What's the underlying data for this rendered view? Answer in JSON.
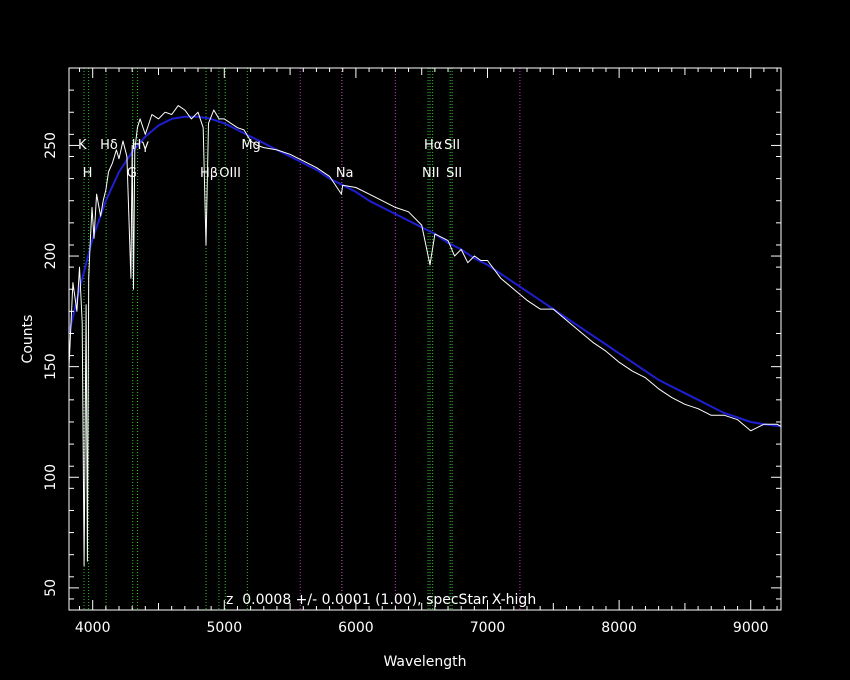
{
  "chart_data": {
    "type": "line",
    "xlabel": "Wavelength",
    "ylabel": "Counts",
    "annotation": "z  0.0008 +/- 0.0001 (1.00), specStar X-high",
    "xlim": [
      3820,
      9230
    ],
    "ylim": [
      40,
      285
    ],
    "x_ticks": [
      4000,
      5000,
      6000,
      7000,
      8000,
      9000
    ],
    "y_ticks": [
      50,
      100,
      150,
      200,
      250
    ],
    "grid": false,
    "colors": {
      "spectrum": "#ffffff",
      "model": "#1e1ed2",
      "line_green": "#30c030",
      "line_magenta": "#c030c0",
      "axes": "#ffffff",
      "background": "#000000"
    },
    "series": [
      {
        "role": "spectrum",
        "x": [
          3820,
          3850,
          3880,
          3900,
          3920,
          3935,
          3950,
          3960,
          3970,
          3980,
          3995,
          4010,
          4030,
          4060,
          4080,
          4100,
          4120,
          4150,
          4180,
          4200,
          4230,
          4260,
          4290,
          4300,
          4310,
          4320,
          4340,
          4360,
          4400,
          4450,
          4500,
          4550,
          4600,
          4650,
          4700,
          4750,
          4800,
          4840,
          4861,
          4880,
          4920,
          4960,
          5000,
          5050,
          5100,
          5150,
          5200,
          5250,
          5300,
          5400,
          5500,
          5600,
          5700,
          5800,
          5890,
          5900,
          6000,
          6100,
          6200,
          6300,
          6400,
          6500,
          6563,
          6600,
          6700,
          6750,
          6800,
          6850,
          6900,
          6950,
          7000,
          7050,
          7100,
          7200,
          7300,
          7400,
          7500,
          7600,
          7700,
          7800,
          7900,
          8000,
          8100,
          8200,
          8300,
          8400,
          8500,
          8600,
          8700,
          8800,
          8900,
          9000,
          9100,
          9200,
          9230
        ],
        "y": [
          150,
          188,
          175,
          195,
          170,
          60,
          178,
          62,
          190,
          205,
          222,
          208,
          228,
          218,
          225,
          230,
          238,
          242,
          248,
          244,
          252,
          245,
          190,
          250,
          185,
          248,
          258,
          262,
          255,
          264,
          262,
          265,
          264,
          268,
          266,
          262,
          265,
          258,
          205,
          260,
          266,
          262,
          262,
          260,
          258,
          257,
          252,
          250,
          249,
          248,
          246,
          243,
          240,
          236,
          228,
          232,
          231,
          228,
          225,
          222,
          220,
          214,
          196,
          210,
          207,
          200,
          203,
          197,
          200,
          198,
          198,
          194,
          190,
          185,
          180,
          176,
          176,
          171,
          166,
          161,
          157,
          152,
          148,
          145,
          140,
          136,
          133,
          131,
          128,
          128,
          126,
          121,
          124,
          124,
          123
        ]
      },
      {
        "role": "model",
        "x": [
          3820,
          3900,
          4000,
          4100,
          4200,
          4300,
          4400,
          4500,
          4600,
          4700,
          4800,
          4900,
          5000,
          5100,
          5200,
          5300,
          5400,
          5500,
          5600,
          5700,
          5800,
          5900,
          6000,
          6100,
          6200,
          6300,
          6400,
          6500,
          6600,
          6700,
          6800,
          6900,
          7000,
          7100,
          7200,
          7300,
          7400,
          7500,
          7600,
          7700,
          7800,
          7900,
          8000,
          8100,
          8200,
          8300,
          8400,
          8500,
          8600,
          8700,
          8800,
          8900,
          9000,
          9100,
          9230
        ],
        "y": [
          165,
          185,
          208,
          225,
          238,
          247,
          254,
          259,
          262,
          263,
          263,
          262,
          260,
          257,
          254,
          251,
          248,
          245,
          242,
          239,
          235,
          232,
          229,
          225,
          222,
          219,
          216,
          213,
          210,
          206,
          203,
          199,
          196,
          192,
          188,
          184,
          180,
          176,
          172,
          168,
          164,
          160,
          156,
          152,
          148,
          144,
          141,
          138,
          135,
          132,
          129,
          127,
          125,
          124,
          123
        ]
      }
    ],
    "lines": [
      {
        "x": 3934,
        "color": "green",
        "label": "K",
        "row": 1
      },
      {
        "x": 3969,
        "color": "green",
        "label": "H",
        "row": 2
      },
      {
        "x": 4102,
        "color": "green",
        "label": "Hδ",
        "row": 1
      },
      {
        "x": 4304,
        "color": "green",
        "label": "G",
        "row": 2
      },
      {
        "x": 4341,
        "color": "green",
        "label": "Hγ",
        "row": 1
      },
      {
        "x": 4861,
        "color": "green",
        "label": "Hβ",
        "row": 2
      },
      {
        "x": 4959,
        "color": "green",
        "label": "",
        "row": 2
      },
      {
        "x": 5007,
        "color": "green",
        "label": "OIII",
        "row": 2
      },
      {
        "x": 5175,
        "color": "green",
        "label": "Mg",
        "row": 1
      },
      {
        "x": 5577,
        "color": "magenta",
        "label": "",
        "row": 0
      },
      {
        "x": 5893,
        "color": "green",
        "label": "Na",
        "row": 2
      },
      {
        "x": 5893,
        "color": "magenta",
        "label": "",
        "row": 0
      },
      {
        "x": 6300,
        "color": "magenta",
        "label": "",
        "row": 0
      },
      {
        "x": 6548,
        "color": "green",
        "label": "NII",
        "row": 2
      },
      {
        "x": 6563,
        "color": "green",
        "label": "Hα",
        "row": 1
      },
      {
        "x": 6583,
        "color": "green",
        "label": "",
        "row": 2
      },
      {
        "x": 6716,
        "color": "green",
        "label": "SII",
        "row": 1
      },
      {
        "x": 6731,
        "color": "green",
        "label": "SII",
        "row": 2
      },
      {
        "x": 7246,
        "color": "magenta",
        "label": "",
        "row": 0
      }
    ]
  }
}
